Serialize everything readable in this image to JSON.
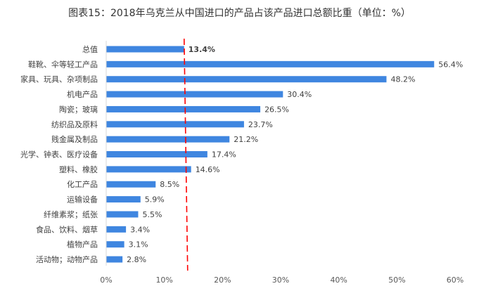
{
  "chart_data": {
    "type": "bar",
    "orientation": "horizontal",
    "title": "图表15：2018年乌克兰从中国进口的产品占该产品进口总额比重（单位：%）",
    "categories": [
      "总值",
      "鞋靴、伞等轻工产品",
      "家具、玩具、杂项制品",
      "机电产品",
      "陶瓷；玻璃",
      "纺织品及原料",
      "贱金属及制品",
      "光学、钟表、医疗设备",
      "塑料、橡胶",
      "化工产品",
      "运输设备",
      "纤维素浆；纸张",
      "食品、饮料、烟草",
      "植物产品",
      "活动物；动物产品"
    ],
    "values": [
      13.4,
      56.4,
      48.2,
      30.4,
      26.5,
      23.7,
      21.2,
      17.4,
      14.6,
      8.5,
      5.9,
      5.5,
      3.4,
      3.1,
      2.8
    ],
    "value_labels": [
      "13.4%",
      "56.4%",
      "48.2%",
      "30.4%",
      "26.5%",
      "23.7%",
      "21.2%",
      "17.4%",
      "14.6%",
      "8.5%",
      "5.9%",
      "5.5%",
      "3.4%",
      "3.1%",
      "2.8%"
    ],
    "xlim": [
      0,
      60
    ],
    "xticks": [
      0,
      10,
      20,
      30,
      40,
      50,
      60
    ],
    "xtick_labels": [
      "0%",
      "10%",
      "20%",
      "30%",
      "40%",
      "50%",
      "60%"
    ],
    "reference_line": {
      "value": 13.4,
      "style": "dashed"
    },
    "grid": false,
    "colors": {
      "bar": "#3f86e0",
      "reference": "#ff0000",
      "highlight_label": "#ff0000"
    }
  }
}
